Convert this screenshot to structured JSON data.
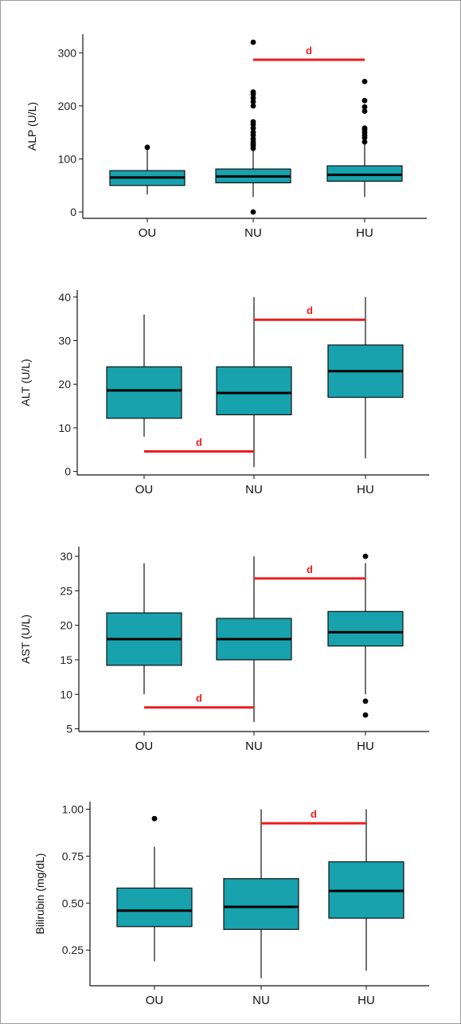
{
  "chart_data": [
    {
      "type": "box",
      "ylabel": "ALP (U/L)",
      "categories": [
        "OU",
        "NU",
        "HU"
      ],
      "yticks": [
        0,
        100,
        200,
        300
      ],
      "ytick_labels": [
        "0",
        "100",
        "200",
        "300"
      ],
      "ylim": [
        -12,
        335
      ],
      "boxes": [
        {
          "q1": 50,
          "median": 65,
          "q3": 78,
          "whisker_low": 33,
          "whisker_high": 120,
          "outliers": [
            122
          ]
        },
        {
          "q1": 55,
          "median": 67,
          "q3": 81,
          "whisker_low": 28,
          "whisker_high": 118,
          "outliers": [
            0,
            120,
            125,
            128,
            132,
            138,
            145,
            150,
            158,
            165,
            170,
            200,
            208,
            215,
            222,
            226,
            320
          ]
        },
        {
          "q1": 58,
          "median": 70,
          "q3": 87,
          "whisker_low": 28,
          "whisker_high": 132,
          "outliers": [
            132,
            140,
            145,
            150,
            155,
            158,
            190,
            198,
            210,
            246
          ]
        }
      ],
      "significance": [
        {
          "from": "NU",
          "to": "HU",
          "y": 287,
          "label": "d"
        }
      ]
    },
    {
      "type": "box",
      "ylabel": "ALT (U/L)",
      "categories": [
        "OU",
        "NU",
        "HU"
      ],
      "yticks": [
        0,
        10,
        20,
        30,
        40
      ],
      "ytick_labels": [
        "0",
        "10",
        "20",
        "30",
        "40"
      ],
      "ylim": [
        -0.8,
        41.6
      ],
      "boxes": [
        {
          "q1": 12.2,
          "median": 18.6,
          "q3": 24,
          "whisker_low": 8,
          "whisker_high": 36,
          "outliers": []
        },
        {
          "q1": 13,
          "median": 18,
          "q3": 24,
          "whisker_low": 1,
          "whisker_high": 40,
          "outliers": []
        },
        {
          "q1": 17,
          "median": 23,
          "q3": 29,
          "whisker_low": 3,
          "whisker_high": 40,
          "outliers": []
        }
      ],
      "significance": [
        {
          "from": "NU",
          "to": "HU",
          "y": 34.8,
          "label": "d"
        },
        {
          "from": "OU",
          "to": "NU",
          "y": 4.6,
          "label": "d"
        }
      ]
    },
    {
      "type": "box",
      "ylabel": "AST (U/L)",
      "categories": [
        "OU",
        "NU",
        "HU"
      ],
      "yticks": [
        5,
        10,
        15,
        20,
        25,
        30
      ],
      "ytick_labels": [
        "5",
        "10",
        "15",
        "20",
        "25",
        "30"
      ],
      "ylim": [
        4.6,
        31.4
      ],
      "boxes": [
        {
          "q1": 14.2,
          "median": 18,
          "q3": 21.8,
          "whisker_low": 10,
          "whisker_high": 29,
          "outliers": []
        },
        {
          "q1": 15,
          "median": 18,
          "q3": 21,
          "whisker_low": 6,
          "whisker_high": 30,
          "outliers": []
        },
        {
          "q1": 17,
          "median": 19,
          "q3": 22,
          "whisker_low": 10,
          "whisker_high": 29,
          "outliers": [
            30,
            9,
            7
          ]
        }
      ],
      "significance": [
        {
          "from": "NU",
          "to": "HU",
          "y": 26.8,
          "label": "d"
        },
        {
          "from": "OU",
          "to": "NU",
          "y": 8.1,
          "label": "d"
        }
      ]
    },
    {
      "type": "box",
      "ylabel": "Bilirubin (mg/dL)",
      "categories": [
        "OU",
        "NU",
        "HU"
      ],
      "yticks": [
        0.25,
        0.5,
        0.75,
        1.0
      ],
      "ytick_labels": [
        "0.25",
        "0.50",
        "0.75",
        "1.00"
      ],
      "ylim": [
        0.06,
        1.04
      ],
      "boxes": [
        {
          "q1": 0.375,
          "median": 0.46,
          "q3": 0.58,
          "whisker_low": 0.19,
          "whisker_high": 0.8,
          "outliers": [
            0.95
          ]
        },
        {
          "q1": 0.36,
          "median": 0.48,
          "q3": 0.63,
          "whisker_low": 0.1,
          "whisker_high": 1.0,
          "outliers": []
        },
        {
          "q1": 0.42,
          "median": 0.565,
          "q3": 0.72,
          "whisker_low": 0.14,
          "whisker_high": 1.0,
          "outliers": []
        }
      ],
      "significance": [
        {
          "from": "NU",
          "to": "HU",
          "y": 0.925,
          "label": "d"
        }
      ]
    }
  ],
  "colors": {
    "box_fill": "#17a2ad",
    "box_stroke": "#111111",
    "significance": "#ee1c1c",
    "outlier": "#000000",
    "frame": "#9a9a9a"
  }
}
